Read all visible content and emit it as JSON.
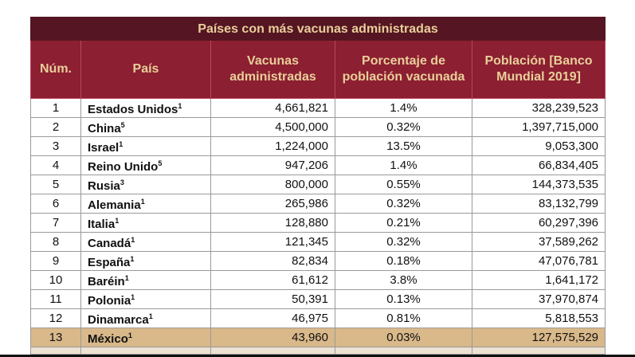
{
  "title": "Países con más vacunas administradas",
  "headers": [
    "Núm.",
    "País",
    "Vacunas administradas",
    "Porcentaje de población vacunada",
    "Población [Banco Mundial 2019]"
  ],
  "rows": [
    {
      "num": "1",
      "country": "Estados Unidos",
      "sup": "1",
      "vaccines": "4,661,821",
      "pct": "1.4%",
      "pop": "328,239,523"
    },
    {
      "num": "2",
      "country": "China",
      "sup": "5",
      "vaccines": "4,500,000",
      "pct": "0.32%",
      "pop": "1,397,715,000"
    },
    {
      "num": "3",
      "country": "Israel",
      "sup": "1",
      "vaccines": "1,224,000",
      "pct": "13.5%",
      "pop": "9,053,300"
    },
    {
      "num": "4",
      "country": "Reino Unido",
      "sup": "5",
      "vaccines": "947,206",
      "pct": "1.4%",
      "pop": "66,834,405"
    },
    {
      "num": "5",
      "country": "Rusia",
      "sup": "3",
      "vaccines": "800,000",
      "pct": "0.55%",
      "pop": "144,373,535"
    },
    {
      "num": "6",
      "country": "Alemania",
      "sup": "1",
      "vaccines": "265,986",
      "pct": "0.32%",
      "pop": "83,132,799"
    },
    {
      "num": "7",
      "country": "Italia",
      "sup": "1",
      "vaccines": "128,880",
      "pct": "0.21%",
      "pop": "60,297,396"
    },
    {
      "num": "8",
      "country": "Canadá",
      "sup": "1",
      "vaccines": "121,345",
      "pct": "0.32%",
      "pop": "37,589,262"
    },
    {
      "num": "9",
      "country": "España",
      "sup": "1",
      "vaccines": "82,834",
      "pct": "0.18%",
      "pop": "47,076,781"
    },
    {
      "num": "10",
      "country": "Baréin",
      "sup": "1",
      "vaccines": "61,612",
      "pct": "3.8%",
      "pop": "1,641,172"
    },
    {
      "num": "11",
      "country": "Polonia",
      "sup": "1",
      "vaccines": "50,391",
      "pct": "0.13%",
      "pop": "37,970,874"
    },
    {
      "num": "12",
      "country": "Dinamarca",
      "sup": "1",
      "vaccines": "46,975",
      "pct": "0.81%",
      "pop": "5,818,553"
    },
    {
      "num": "13",
      "country": "México",
      "sup": "1",
      "vaccines": "43,960",
      "pct": "0.03%",
      "pop": "127,575,529"
    }
  ],
  "highlight_row": "13",
  "colors": {
    "title_bg": "#551522",
    "header_bg": "#8c1f31",
    "header_text": "#e8cf9a",
    "highlight": "#d9b88a"
  }
}
